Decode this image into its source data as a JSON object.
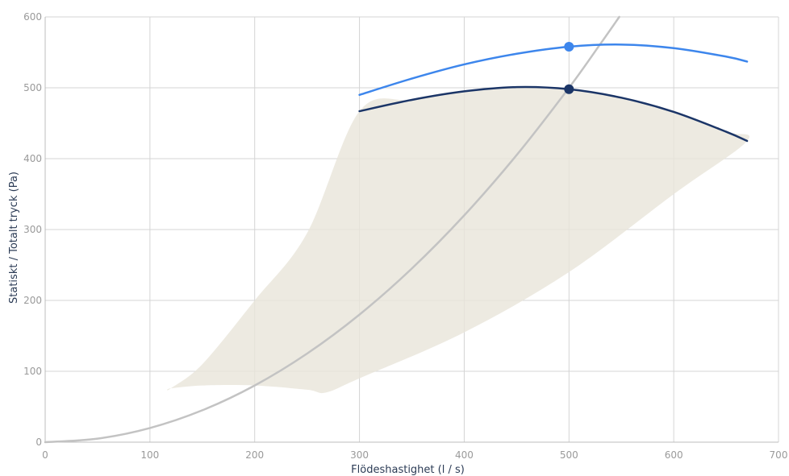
{
  "chart_data": {
    "type": "line",
    "xlabel": "Flödeshastighet (l / s)",
    "ylabel": "Statiskt  / Totalt tryck (Pa)",
    "xlim": [
      0,
      700
    ],
    "ylim": [
      0,
      600
    ],
    "xticks": [
      0,
      100,
      200,
      300,
      400,
      500,
      600,
      700
    ],
    "yticks": [
      0,
      100,
      200,
      300,
      400,
      500,
      600
    ],
    "grid": true,
    "colors": {
      "total_pressure": "#3d86ec",
      "static_pressure": "#1b3567",
      "system_curve": "#c3c3c3",
      "operating_area": "#e9e5da"
    },
    "series": [
      {
        "key": "total_pressure",
        "points": [
          [
            300,
            490
          ],
          [
            350,
            513
          ],
          [
            400,
            533
          ],
          [
            450,
            548
          ],
          [
            500,
            558
          ],
          [
            550,
            561
          ],
          [
            600,
            556
          ],
          [
            650,
            544
          ],
          [
            670,
            537
          ]
        ]
      },
      {
        "key": "static_pressure",
        "points": [
          [
            300,
            467
          ],
          [
            350,
            483
          ],
          [
            400,
            495
          ],
          [
            450,
            501
          ],
          [
            500,
            498
          ],
          [
            550,
            486
          ],
          [
            600,
            466
          ],
          [
            650,
            438
          ],
          [
            670,
            425
          ]
        ]
      },
      {
        "key": "system_curve",
        "points": [
          [
            0,
            0
          ],
          [
            50,
            5
          ],
          [
            100,
            20
          ],
          [
            150,
            45
          ],
          [
            200,
            80
          ],
          [
            250,
            125
          ],
          [
            300,
            180
          ],
          [
            350,
            245
          ],
          [
            400,
            320
          ],
          [
            450,
            405
          ],
          [
            500,
            500
          ],
          [
            530,
            562
          ],
          [
            548,
            600
          ]
        ]
      }
    ],
    "operating_area": [
      [
        120,
        76
      ],
      [
        150,
        110
      ],
      [
        200,
        200
      ],
      [
        250,
        295
      ],
      [
        300,
        467
      ],
      [
        350,
        483
      ],
      [
        400,
        495
      ],
      [
        450,
        501
      ],
      [
        500,
        498
      ],
      [
        550,
        486
      ],
      [
        600,
        466
      ],
      [
        650,
        438
      ],
      [
        670,
        425
      ],
      [
        600,
        350
      ],
      [
        500,
        240
      ],
      [
        400,
        155
      ],
      [
        300,
        90
      ],
      [
        268,
        70
      ],
      [
        250,
        74
      ],
      [
        200,
        80
      ],
      [
        150,
        80
      ],
      [
        120,
        76
      ]
    ],
    "markers": [
      {
        "key": "total_pressure",
        "x": 500,
        "y": 558
      },
      {
        "key": "static_pressure",
        "x": 500,
        "y": 498
      }
    ]
  }
}
